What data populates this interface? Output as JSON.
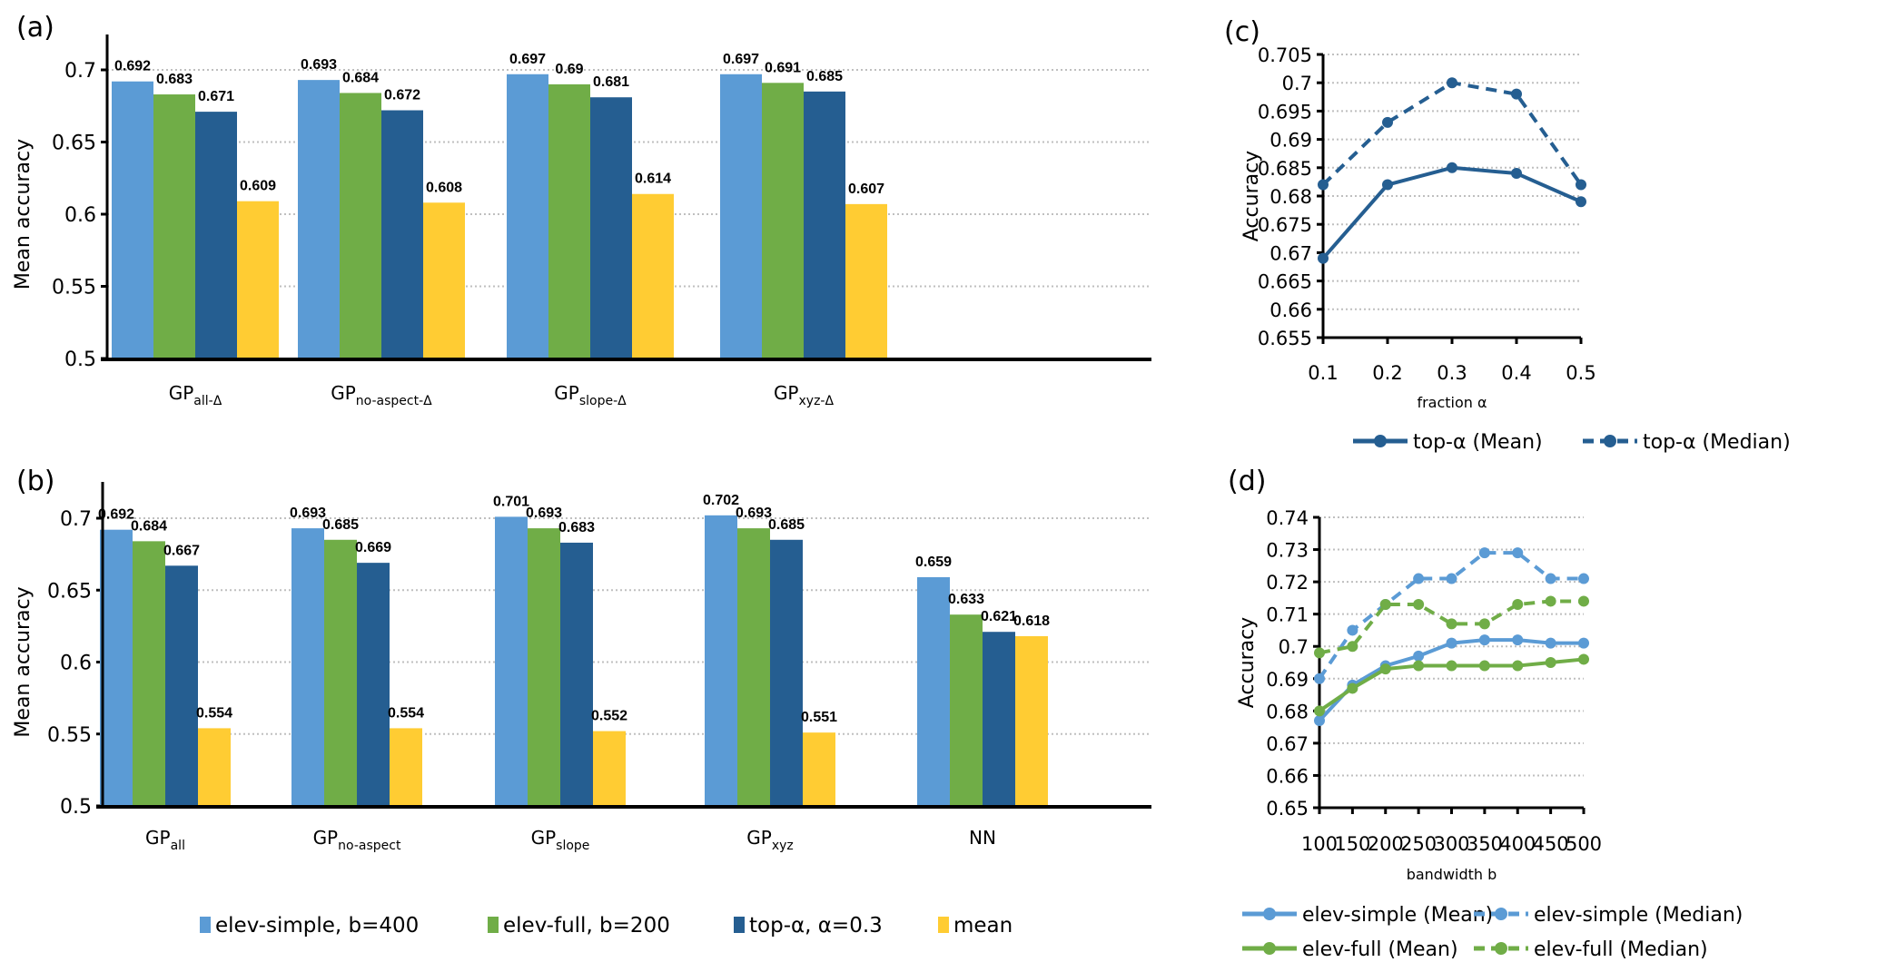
{
  "colors": {
    "elev_simple": "#5b9bd5",
    "elev_full": "#70ad47",
    "top_alpha": "#255e91",
    "mean": "#ffcc33",
    "grid": "#bfbfbf",
    "axis": "#000000"
  },
  "chart_data": [
    {
      "id": "a",
      "panel_label": "(a)",
      "type": "bar",
      "ylabel": "Mean accuracy",
      "xlabel": "",
      "ylim": [
        0.5,
        0.72
      ],
      "yticks": [
        "0.5",
        "0.55",
        "0.6",
        "0.65",
        "0.7"
      ],
      "ytick_values": [
        0.5,
        0.55,
        0.6,
        0.65,
        0.7
      ],
      "grid": true,
      "categories": [
        {
          "main": "GP",
          "sub": "all-Δ"
        },
        {
          "main": "GP",
          "sub": "no-aspect-Δ"
        },
        {
          "main": "GP",
          "sub": "slope-Δ"
        },
        {
          "main": "GP",
          "sub": "xyz-Δ"
        }
      ],
      "series": [
        {
          "name": "elev-simple, b=400",
          "color_key": "elev_simple",
          "values": [
            0.692,
            0.693,
            0.697,
            0.697
          ],
          "labels": [
            "0.692",
            "0.693",
            "0.697",
            "0.697"
          ]
        },
        {
          "name": "elev-full, b=200",
          "color_key": "elev_full",
          "values": [
            0.683,
            0.684,
            0.69,
            0.691
          ],
          "labels": [
            "0.683",
            "0.684",
            "0.69",
            "0.691"
          ]
        },
        {
          "name": "top-α, α=0.3",
          "color_key": "top_alpha",
          "values": [
            0.671,
            0.672,
            0.681,
            0.685
          ],
          "labels": [
            "0.671",
            "0.672",
            "0.681",
            "0.685"
          ]
        },
        {
          "name": "mean",
          "color_key": "mean",
          "values": [
            0.609,
            0.608,
            0.614,
            0.607
          ],
          "labels": [
            "0.609",
            "0.608",
            "0.614",
            "0.607"
          ]
        }
      ]
    },
    {
      "id": "b",
      "panel_label": "(b)",
      "type": "bar",
      "ylabel": "Mean accuracy",
      "xlabel": "",
      "ylim": [
        0.5,
        0.72
      ],
      "yticks": [
        "0.5",
        "0.55",
        "0.6",
        "0.65",
        "0.7"
      ],
      "ytick_values": [
        0.5,
        0.55,
        0.6,
        0.65,
        0.7
      ],
      "grid": true,
      "categories": [
        {
          "main": "GP",
          "sub": "all"
        },
        {
          "main": "GP",
          "sub": "no-aspect"
        },
        {
          "main": "GP",
          "sub": "slope"
        },
        {
          "main": "GP",
          "sub": "xyz"
        },
        {
          "main": "NN",
          "sub": ""
        }
      ],
      "series": [
        {
          "name": "elev-simple, b=400",
          "color_key": "elev_simple",
          "values": [
            0.692,
            0.693,
            0.701,
            0.702,
            0.659
          ],
          "labels": [
            "0.692",
            "0.693",
            "0.701",
            "0.702",
            "0.659"
          ]
        },
        {
          "name": "elev-full, b=200",
          "color_key": "elev_full",
          "values": [
            0.684,
            0.685,
            0.693,
            0.693,
            0.633
          ],
          "labels": [
            "0.684",
            "0.685",
            "0.693",
            "0.693",
            "0.633"
          ]
        },
        {
          "name": "top-α, α=0.3",
          "color_key": "top_alpha",
          "values": [
            0.667,
            0.669,
            0.683,
            0.685,
            0.621
          ],
          "labels": [
            "0.667",
            "0.669",
            "0.683",
            "0.685",
            "0.621"
          ]
        },
        {
          "name": "mean",
          "color_key": "mean",
          "values": [
            0.554,
            0.554,
            0.552,
            0.551,
            0.618
          ],
          "labels": [
            "0.554",
            "0.554",
            "0.552",
            "0.551",
            "0.618"
          ]
        }
      ],
      "legend": {
        "placement": "bottom",
        "entries": [
          {
            "label": "elev-simple, b=400",
            "color_key": "elev_simple"
          },
          {
            "label": "elev-full, b=200",
            "color_key": "elev_full"
          },
          {
            "label": "top-α, α=0.3",
            "color_key": "top_alpha"
          },
          {
            "label": "mean",
            "color_key": "mean"
          }
        ]
      }
    },
    {
      "id": "c",
      "panel_label": "(c)",
      "type": "line",
      "ylabel": "Accuracy",
      "xlabel": "fraction α",
      "x": [
        0.1,
        0.2,
        0.3,
        0.4,
        0.5
      ],
      "xticks": [
        "0.1",
        "0.2",
        "0.3",
        "0.4",
        "0.5"
      ],
      "ylim": [
        0.655,
        0.705
      ],
      "yticks": [
        "0.655",
        "0.66",
        "0.665",
        "0.67",
        "0.675",
        "0.68",
        "0.685",
        "0.69",
        "0.695",
        "0.7",
        "0.705"
      ],
      "ytick_values": [
        0.655,
        0.66,
        0.665,
        0.67,
        0.675,
        0.68,
        0.685,
        0.69,
        0.695,
        0.7,
        0.705
      ],
      "grid": true,
      "series": [
        {
          "name": "top-α (Mean)",
          "color_key": "top_alpha",
          "dashed": false,
          "values": [
            0.669,
            0.682,
            0.685,
            0.684,
            0.679
          ]
        },
        {
          "name": "top-α (Median)",
          "color_key": "top_alpha",
          "dashed": true,
          "values": [
            0.682,
            0.693,
            0.7,
            0.698,
            0.682
          ]
        }
      ],
      "legend": {
        "placement": "bottom"
      }
    },
    {
      "id": "d",
      "panel_label": "(d)",
      "type": "line",
      "ylabel": "Accuracy",
      "xlabel": "bandwidth b",
      "x": [
        100,
        150,
        200,
        250,
        300,
        350,
        400,
        450,
        500
      ],
      "xticks": [
        "100",
        "150",
        "200",
        "250",
        "300",
        "350",
        "400",
        "450",
        "500"
      ],
      "ylim": [
        0.65,
        0.74
      ],
      "yticks": [
        "0.65",
        "0.66",
        "0.67",
        "0.68",
        "0.69",
        "0.7",
        "0.71",
        "0.72",
        "0.73",
        "0.74"
      ],
      "ytick_values": [
        0.65,
        0.66,
        0.67,
        0.68,
        0.69,
        0.7,
        0.71,
        0.72,
        0.73,
        0.74
      ],
      "grid": true,
      "series": [
        {
          "name": "elev-simple (Mean)",
          "color_key": "elev_simple",
          "dashed": false,
          "values": [
            0.677,
            0.688,
            0.694,
            0.697,
            0.701,
            0.702,
            0.702,
            0.701,
            0.701
          ]
        },
        {
          "name": "elev-simple (Median)",
          "color_key": "elev_simple",
          "dashed": true,
          "values": [
            0.69,
            0.705,
            0.713,
            0.721,
            0.721,
            0.729,
            0.729,
            0.721,
            0.721
          ]
        },
        {
          "name": "elev-full (Mean)",
          "color_key": "elev_full",
          "dashed": false,
          "values": [
            0.68,
            0.687,
            0.693,
            0.694,
            0.694,
            0.694,
            0.694,
            0.695,
            0.696
          ]
        },
        {
          "name": "elev-full (Median)",
          "color_key": "elev_full",
          "dashed": true,
          "values": [
            0.698,
            0.7,
            0.713,
            0.713,
            0.707,
            0.707,
            0.713,
            0.714,
            0.714
          ]
        }
      ],
      "legend": {
        "placement": "bottom"
      }
    }
  ]
}
